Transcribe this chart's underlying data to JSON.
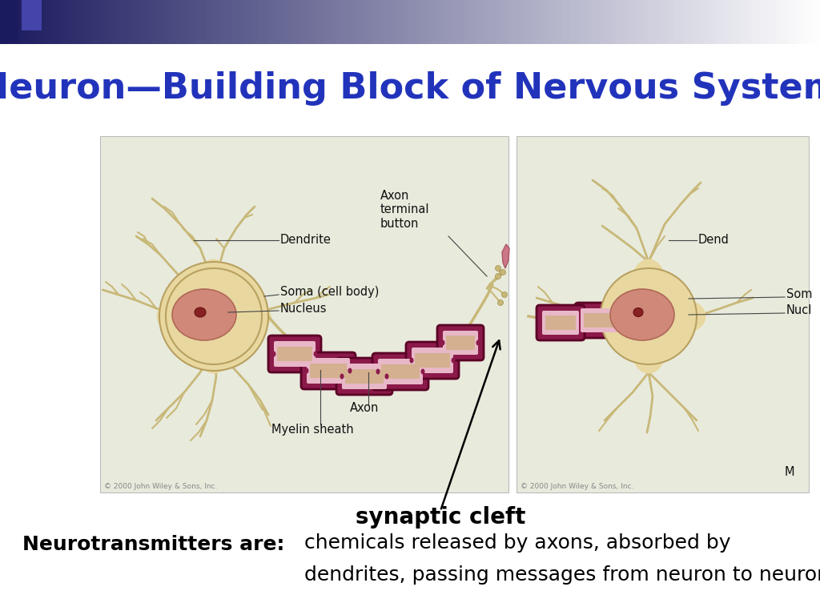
{
  "title": "Neuron—Building Block of Nervous System",
  "title_color": "#2233bb",
  "title_fontsize": 32,
  "background_color": "#ffffff",
  "box_bg": "#e8eadc",
  "box_border": "#bbbbbb",
  "dendrite_color": "#c8b878",
  "soma_color": "#e8d8a0",
  "soma_edge": "#c8b060",
  "nucleus_color": "#d08878",
  "nucleus_edge": "#b06858",
  "dot_color": "#882222",
  "myelin_outer": "#8b1a4a",
  "myelin_inner": "#e8b8c8",
  "myelin_mid": "#d4a0b0",
  "arrow_color": "#222222",
  "label_color": "#111111",
  "synaptic_label": "synaptic cleft",
  "nt_bold": "Neurotransmitters are:",
  "nt_text1": "chemicals released by axons, absorbed by",
  "nt_text2": "dendrites, passing messages from neuron to neuron.",
  "copyright": "© 2000 John Wiley & Sons, Inc.",
  "header_dark": "#1a1a5e",
  "lw_dendrite": 2.0,
  "lw_axon": 2.5,
  "lw_myelin": 2.0
}
